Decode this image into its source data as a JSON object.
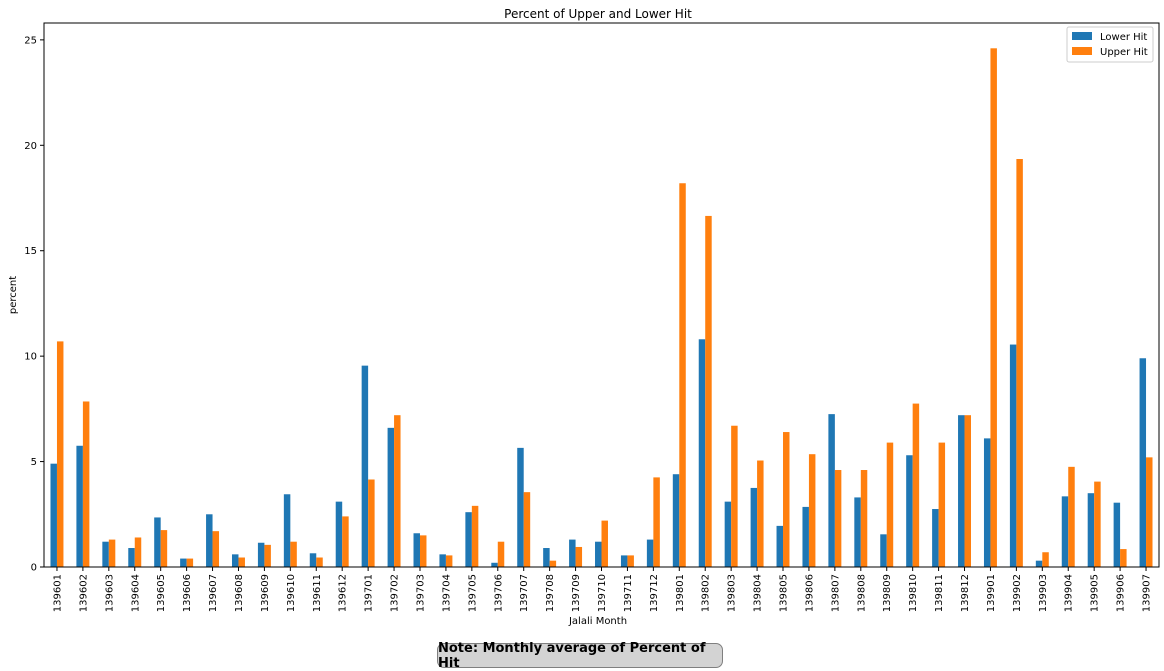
{
  "chart_data": {
    "type": "bar",
    "title": "Percent of Upper and Lower Hit",
    "xlabel": "Jalali Month",
    "ylabel": "percent",
    "ylim": [
      0,
      25.8
    ],
    "yticks": [
      0,
      5,
      10,
      15,
      20,
      25
    ],
    "grid": false,
    "legend_position": "top-right",
    "categories": [
      "139601",
      "139602",
      "139603",
      "139604",
      "139605",
      "139606",
      "139607",
      "139608",
      "139609",
      "139610",
      "139611",
      "139612",
      "139701",
      "139702",
      "139703",
      "139704",
      "139705",
      "139706",
      "139707",
      "139708",
      "139709",
      "139710",
      "139711",
      "139712",
      "139801",
      "139802",
      "139803",
      "139804",
      "139805",
      "139806",
      "139807",
      "139808",
      "139809",
      "139810",
      "139811",
      "139812",
      "139901",
      "139902",
      "139903",
      "139904",
      "139905",
      "139906",
      "139907"
    ],
    "series": [
      {
        "name": "Lower Hit",
        "color": "#1f77b4",
        "values": [
          4.9,
          5.75,
          1.2,
          0.9,
          2.35,
          0.4,
          2.5,
          0.6,
          1.15,
          3.45,
          0.65,
          3.1,
          9.55,
          6.6,
          1.6,
          0.6,
          2.6,
          0.2,
          5.65,
          0.9,
          1.3,
          1.2,
          0.55,
          1.3,
          4.4,
          10.8,
          3.1,
          3.75,
          1.95,
          2.85,
          7.25,
          3.3,
          1.55,
          5.3,
          2.75,
          7.2,
          6.1,
          10.55,
          0.3,
          3.35,
          3.5,
          3.05,
          9.9
        ]
      },
      {
        "name": "Upper Hit",
        "color": "#ff7f0e",
        "values": [
          10.7,
          7.85,
          1.3,
          1.4,
          1.75,
          0.4,
          1.7,
          0.45,
          1.05,
          1.2,
          0.45,
          2.4,
          4.15,
          7.2,
          1.5,
          0.55,
          2.9,
          1.2,
          3.55,
          0.3,
          0.95,
          2.2,
          0.55,
          4.25,
          18.2,
          16.65,
          6.7,
          5.05,
          6.4,
          5.35,
          4.6,
          4.6,
          5.9,
          7.75,
          5.9,
          7.2,
          24.6,
          19.35,
          0.7,
          4.75,
          4.05,
          0.85,
          5.2
        ]
      }
    ]
  },
  "note": {
    "text": "Note: Monthly average of Percent of Hit"
  }
}
